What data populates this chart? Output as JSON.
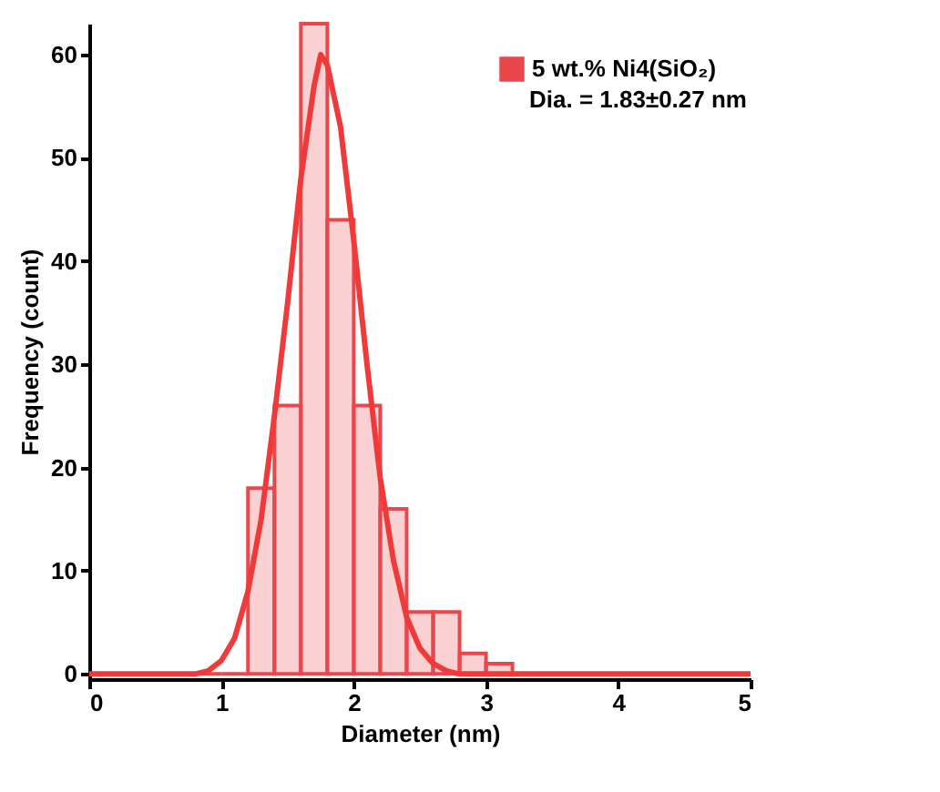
{
  "chart_data": {
    "type": "histogram",
    "xlabel": "Diameter (nm)",
    "ylabel": "Frequency (count)",
    "bins": [
      0,
      0.2,
      0.4,
      0.6,
      0.8,
      1.0,
      1.2,
      1.4,
      1.6,
      1.8,
      2.0,
      2.2,
      2.4,
      2.6,
      2.8,
      3.0,
      3.2,
      3.4,
      3.6,
      3.8,
      4.0,
      4.2,
      4.4,
      4.6,
      4.8,
      5.0
    ],
    "series": [
      {
        "name": "5 wt.% Ni4(SiO₂)",
        "color": "#e8474c",
        "values": [
          0,
          0,
          0,
          0,
          0,
          0,
          18,
          26,
          63,
          44,
          26,
          16,
          6,
          6,
          2,
          1,
          0,
          0,
          0,
          0,
          0,
          0,
          0,
          0,
          0
        ]
      },
      {
        "type": "line",
        "color": "#f03a3a",
        "x": [
          0,
          0.8,
          0.9,
          1.0,
          1.1,
          1.2,
          1.3,
          1.4,
          1.5,
          1.6,
          1.7,
          1.75,
          1.8,
          1.9,
          2.0,
          2.1,
          2.2,
          2.3,
          2.4,
          2.5,
          2.6,
          2.7,
          2.8,
          5.0
        ],
        "values": [
          0,
          0,
          0.3,
          1.3,
          3.5,
          8,
          15,
          25,
          36,
          48,
          57,
          60,
          59,
          53,
          42,
          30,
          19,
          11,
          5.5,
          2.5,
          1,
          0.3,
          0,
          0
        ]
      }
    ],
    "xlim": [
      0,
      5
    ],
    "xticks": [
      0,
      1,
      2,
      3,
      4,
      5
    ],
    "ylim": [
      -0.5,
      63
    ],
    "yticks": [
      0,
      10,
      20,
      30,
      40,
      50,
      60
    ],
    "grid": false,
    "legend": "top right",
    "annotations": [
      "Dia. =  1.83±0.27 nm"
    ]
  }
}
